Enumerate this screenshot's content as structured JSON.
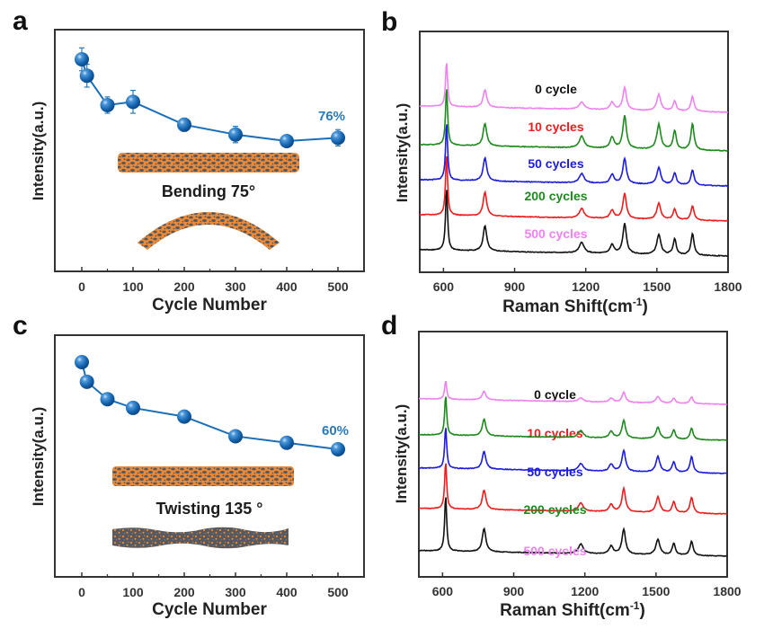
{
  "figure": {
    "panels": [
      "a",
      "b",
      "c",
      "d"
    ]
  },
  "colors": {
    "marker_blue": "#1565b0",
    "line_blue": "#1a6fb8",
    "annotation_blue": "#2a7ab8",
    "fiber_orange": "#e98a3a",
    "fiber_gray": "#55575c"
  },
  "chart_data": [
    {
      "panel": "a",
      "type": "line",
      "title": "",
      "xlabel": "Cycle Number",
      "ylabel": "Intensity(a.u.)",
      "xlim": [
        -50,
        550
      ],
      "ylim": [
        0,
        1.3
      ],
      "xticks": [
        0,
        100,
        200,
        300,
        400,
        500
      ],
      "xtick_labels": [
        "0",
        "100",
        "200",
        "300",
        "400",
        "500"
      ],
      "minor_xticks": [
        50,
        150,
        250,
        350,
        450
      ],
      "yticks_visible": false,
      "series": [
        {
          "name": "Bending",
          "x": [
            0,
            10,
            50,
            100,
            200,
            300,
            400,
            500
          ],
          "y": [
            1.0,
            0.95,
            0.86,
            0.87,
            0.8,
            0.77,
            0.75,
            0.76
          ],
          "err": [
            0.035,
            0.035,
            0.025,
            0.035,
            0.02,
            0.025,
            0.015,
            0.025
          ],
          "marker": "sphere",
          "color": "#1565b0"
        }
      ],
      "annotations": [
        {
          "text": "76%",
          "x": 500,
          "y": 0.79
        }
      ],
      "inset_caption": "Bending 75°",
      "inset_images": [
        "straight-fiber",
        "bent-fiber"
      ]
    },
    {
      "panel": "b",
      "type": "line",
      "title": "",
      "xlabel": "Raman Shift(cm⁻¹)",
      "xlabel_base": "Raman Shift(cm",
      "xlabel_sup": "-1",
      "xlabel_close": ")",
      "ylabel": "Intensity(a.u.)",
      "xlim": [
        500,
        1800
      ],
      "xticks": [
        600,
        900,
        1200,
        1500,
        1800
      ],
      "xtick_labels": [
        "600",
        "900",
        "1200",
        "1500",
        "1800"
      ],
      "yticks_visible": false,
      "peaks_cm": [
        613,
        775,
        1183,
        1311,
        1364,
        1508,
        1575,
        1650
      ],
      "series": [
        {
          "name": "0 cycle",
          "color": "#111111",
          "offset": 4,
          "peak_heights": [
            1.0,
            0.4,
            0.17,
            0.14,
            0.48,
            0.32,
            0.25,
            0.34
          ]
        },
        {
          "name": "10 cycles",
          "color": "#ee1c1c",
          "offset": 3,
          "peak_heights": [
            0.98,
            0.38,
            0.15,
            0.13,
            0.4,
            0.26,
            0.17,
            0.23
          ]
        },
        {
          "name": "50 cycles",
          "color": "#1c1cdd",
          "offset": 2,
          "peak_heights": [
            0.92,
            0.37,
            0.15,
            0.14,
            0.4,
            0.27,
            0.19,
            0.24
          ]
        },
        {
          "name": "200 cycles",
          "color": "#1e8a1e",
          "offset": 1,
          "peak_heights": [
            0.92,
            0.36,
            0.19,
            0.18,
            0.52,
            0.4,
            0.3,
            0.42
          ]
        },
        {
          "name": "500 cycles",
          "color": "#ee82ee",
          "offset": 0,
          "peak_heights": [
            0.72,
            0.28,
            0.12,
            0.12,
            0.36,
            0.26,
            0.16,
            0.24
          ]
        }
      ]
    },
    {
      "panel": "c",
      "type": "line",
      "title": "",
      "xlabel": "Cycle Number",
      "ylabel": "Intensity(a.u.)",
      "xlim": [
        -50,
        550
      ],
      "ylim": [
        0,
        1.3
      ],
      "xticks": [
        0,
        100,
        200,
        300,
        400,
        500
      ],
      "xtick_labels": [
        "0",
        "100",
        "200",
        "300",
        "400",
        "500"
      ],
      "minor_xticks": [
        50,
        150,
        250,
        350,
        450
      ],
      "yticks_visible": false,
      "series": [
        {
          "name": "Twisting",
          "x": [
            0,
            10,
            50,
            100,
            200,
            300,
            400,
            500
          ],
          "y": [
            1.0,
            0.91,
            0.83,
            0.79,
            0.75,
            0.66,
            0.63,
            0.6
          ],
          "marker": "sphere",
          "color": "#1565b0"
        }
      ],
      "annotations": [
        {
          "text": "60%",
          "x": 500,
          "y": 0.66
        }
      ],
      "inset_caption": "Twisting 135 °",
      "inset_images": [
        "straight-fiber",
        "twisted-fiber"
      ]
    },
    {
      "panel": "d",
      "type": "line",
      "title": "",
      "xlabel": "Raman Shift(cm⁻¹)",
      "xlabel_base": "Raman Shift(cm",
      "xlabel_sup": "-1",
      "xlabel_close": ")",
      "ylabel": "Intensity(a.u.)",
      "xlim": [
        500,
        1800
      ],
      "xticks": [
        600,
        900,
        1200,
        1500,
        1800
      ],
      "xtick_labels": [
        "600",
        "900",
        "1200",
        "1500",
        "1800"
      ],
      "yticks_visible": false,
      "peaks_cm": [
        613,
        775,
        1183,
        1311,
        1364,
        1508,
        1575,
        1650
      ],
      "series": [
        {
          "name": "0 cycle",
          "color": "#111111",
          "offset": 4,
          "peak_heights": [
            1.0,
            0.42,
            0.17,
            0.14,
            0.45,
            0.28,
            0.21,
            0.25
          ]
        },
        {
          "name": "10 cycles",
          "color": "#ee1c1c",
          "offset": 3,
          "peak_heights": [
            0.85,
            0.35,
            0.15,
            0.13,
            0.42,
            0.28,
            0.2,
            0.29
          ]
        },
        {
          "name": "50 cycles",
          "color": "#1c1cdd",
          "offset": 2,
          "peak_heights": [
            0.75,
            0.32,
            0.13,
            0.13,
            0.38,
            0.28,
            0.19,
            0.29
          ]
        },
        {
          "name": "200 cycles",
          "color": "#1e8a1e",
          "offset": 1,
          "peak_heights": [
            0.72,
            0.3,
            0.13,
            0.12,
            0.32,
            0.21,
            0.16,
            0.2
          ]
        },
        {
          "name": "500 cycles",
          "color": "#ee82ee",
          "offset": 0,
          "peak_heights": [
            0.34,
            0.16,
            0.07,
            0.07,
            0.18,
            0.12,
            0.09,
            0.12
          ]
        }
      ]
    }
  ]
}
